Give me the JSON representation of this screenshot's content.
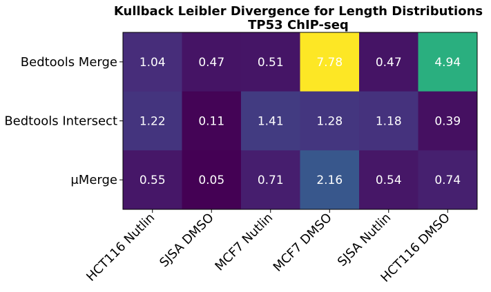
{
  "chart_data": {
    "type": "heatmap",
    "title": "Kullback Leibler Divergence for Length Distributions",
    "subtitle": "TP53 ChIP-seq",
    "rows": [
      "Bedtools Merge",
      "Bedtools Intersect",
      "μMerge"
    ],
    "columns": [
      "HCT116 Nutlin",
      "SJSA DMSO",
      "MCF7 Nutlin",
      "MCF7 DMSO",
      "SJSA Nutlin",
      "HCT116 DMSO"
    ],
    "values": [
      [
        1.04,
        0.47,
        0.51,
        7.78,
        0.47,
        4.94
      ],
      [
        1.22,
        0.11,
        1.41,
        1.28,
        1.18,
        0.39
      ],
      [
        0.55,
        0.05,
        0.71,
        2.16,
        0.54,
        0.74
      ]
    ],
    "value_labels": [
      [
        "1.04",
        "0.47",
        "0.51",
        "7.78",
        "0.47",
        "4.94"
      ],
      [
        "1.22",
        "0.11",
        "1.41",
        "1.28",
        "1.18",
        "0.39"
      ],
      [
        "0.55",
        "0.05",
        "0.71",
        "2.16",
        "0.54",
        "0.74"
      ]
    ],
    "colormap": "viridis",
    "vmin": 0.05,
    "vmax": 7.78,
    "grid": false,
    "colorbar": false
  }
}
